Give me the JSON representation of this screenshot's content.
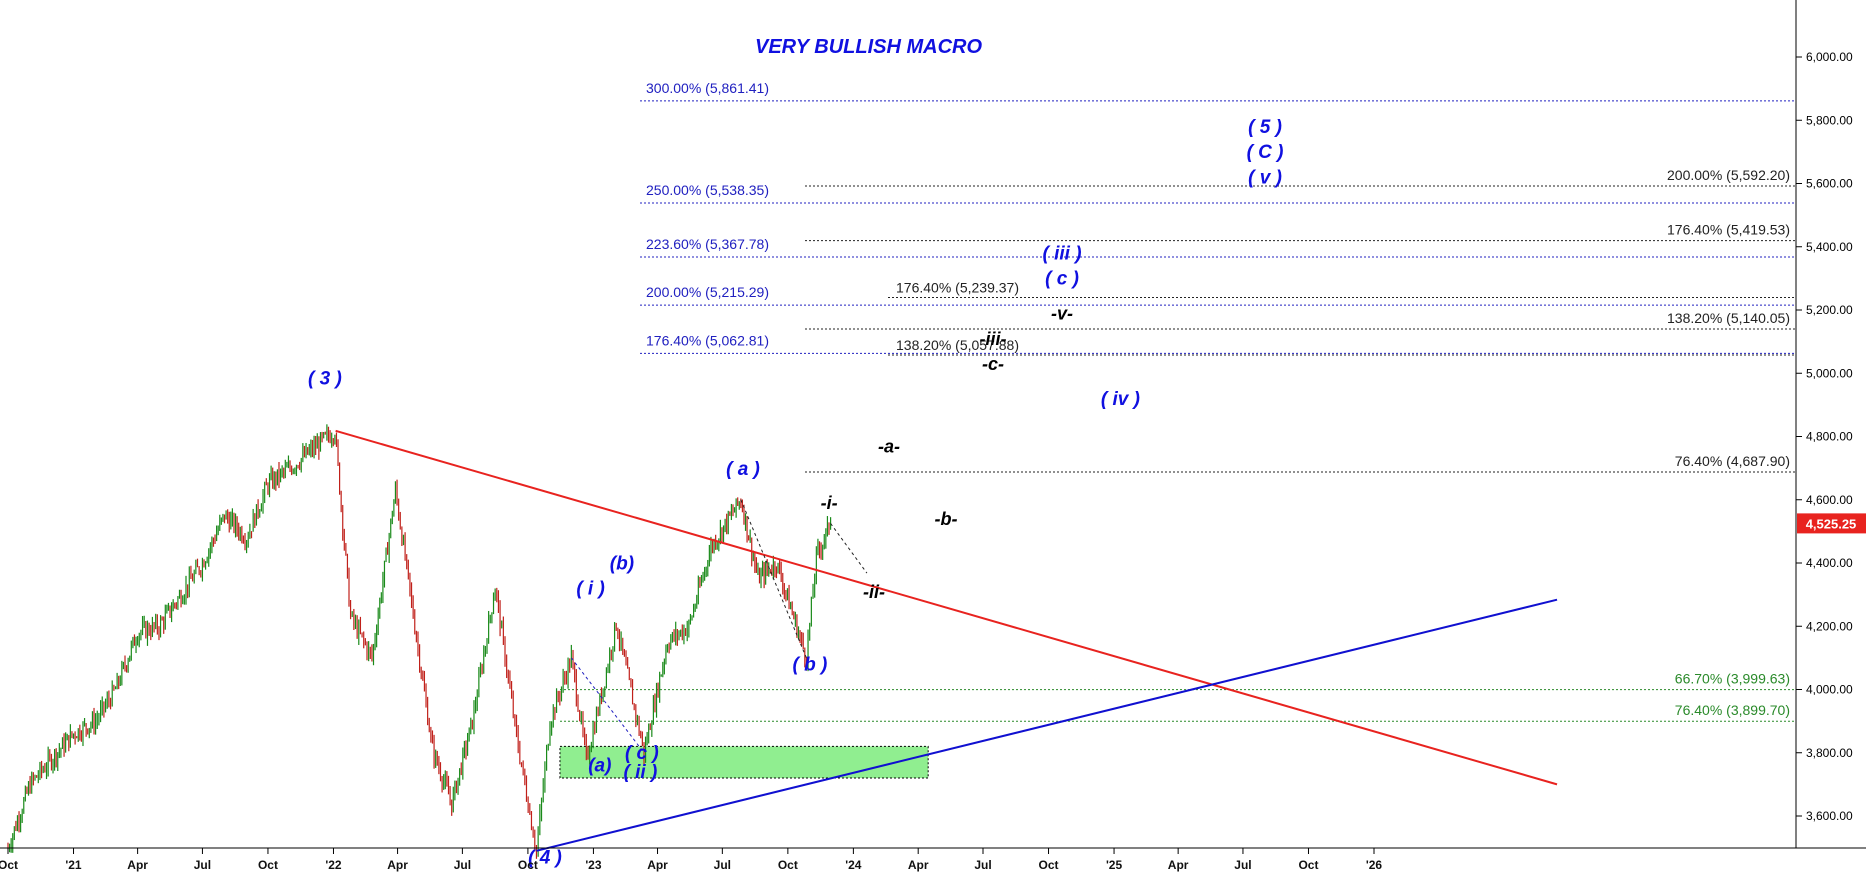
{
  "chart_data": {
    "type": "line",
    "title": "VERY BULLISH MACRO",
    "ylim": [
      3480,
      6200
    ],
    "x_ticks": [
      "Oct",
      "'21",
      "Apr",
      "Jul",
      "Oct",
      "'22",
      "Apr",
      "Jul",
      "Oct",
      "'23",
      "Apr",
      "Jul",
      "Oct",
      "'24",
      "Apr",
      "Jul",
      "Oct",
      "'25",
      "Apr",
      "Jul",
      "Oct",
      "'26"
    ],
    "y_ticks": [
      "3,600.00",
      "3,800.00",
      "4,000.00",
      "4,200.00",
      "4,400.00",
      "4,600.00",
      "4,800.00",
      "5,000.00",
      "5,200.00",
      "5,400.00",
      "5,600.00",
      "5,800.00",
      "6,000.00"
    ],
    "y_tick_values": [
      3600,
      3800,
      4000,
      4200,
      4400,
      4600,
      4800,
      5000,
      5200,
      5400,
      5600,
      5800,
      6000
    ],
    "last_price": {
      "value": 4525.25,
      "label": "4,525.25",
      "color": "#e8231f"
    },
    "price_series": {
      "name": "",
      "color_up": "#1a8a1a",
      "color_down": "#c0201a",
      "x": [
        "2020-10-01",
        "2020-11-01",
        "2020-12-01",
        "2021-01-01",
        "2021-02-01",
        "2021-03-01",
        "2021-04-01",
        "2021-05-01",
        "2021-06-01",
        "2021-07-01",
        "2021-08-01",
        "2021-09-01",
        "2021-10-01",
        "2021-11-01",
        "2022-01-03",
        "2022-01-25",
        "2022-02-24",
        "2022-03-29",
        "2022-05-20",
        "2022-06-16",
        "2022-07-15",
        "2022-08-16",
        "2022-09-15",
        "2022-10-13",
        "2022-11-01",
        "2022-12-01",
        "2022-12-22",
        "2023-01-10",
        "2023-02-02",
        "2023-03-13",
        "2023-04-15",
        "2023-05-15",
        "2023-06-15",
        "2023-07-27",
        "2023-08-20",
        "2023-09-15",
        "2023-10-27",
        "2023-11-10",
        "2023-11-30"
      ],
      "y": [
        3500,
        3700,
        3780,
        3860,
        3900,
        4000,
        4180,
        4200,
        4300,
        4400,
        4550,
        4480,
        4650,
        4700,
        4818,
        4230,
        4100,
        4630,
        3810,
        3640,
        3900,
        4325,
        3850,
        3490,
        3900,
        4100,
        3780,
        3960,
        4208,
        3800,
        4150,
        4200,
        4450,
        4600,
        4350,
        4400,
        4100,
        4420,
        4525
      ]
    },
    "trendlines": [
      {
        "color": "#e8231f",
        "from": {
          "x": "2022-01-04",
          "y": 4818
        },
        "to": {
          "x": "2026-09-15",
          "y": 3700
        }
      },
      {
        "color": "#1010d0",
        "from": {
          "x": "2022-10-13",
          "y": 3490
        },
        "to": {
          "x": "2026-09-15",
          "y": 4284
        }
      },
      {
        "color": "#2020c0",
        "dashed": true,
        "from": {
          "x": "2022-12-01",
          "y": 4100
        },
        "to": {
          "x": "2023-03-13",
          "y": 3800
        }
      },
      {
        "color": "#222222",
        "dashed": true,
        "from": {
          "x": "2023-07-27",
          "y": 4600
        },
        "to": {
          "x": "2023-10-27",
          "y": 4100
        }
      },
      {
        "color": "#222222",
        "dashed": true,
        "from": {
          "x": "2023-11-30",
          "y": 4525
        },
        "to": {
          "x": "2024-01-20",
          "y": 4368
        }
      }
    ],
    "zone": {
      "color": "#90ee90",
      "x_start": "2022-11-15",
      "x_end": "2024-04-15",
      "y_low": 3720,
      "y_high": 3820
    },
    "fib_levels_left": [
      {
        "label": "300.00% (5,861.41)",
        "y": 5861.41,
        "color": "#2020c0"
      },
      {
        "label": "250.00% (5,538.35)",
        "y": 5538.35,
        "color": "#2020c0"
      },
      {
        "label": "223.60% (5,367.78)",
        "y": 5367.78,
        "color": "#2020c0"
      },
      {
        "label": "200.00% (5,215.29)",
        "y": 5215.29,
        "color": "#2020c0"
      },
      {
        "label": "176.40% (5,062.81)",
        "y": 5062.81,
        "color": "#2020c0"
      }
    ],
    "fib_levels_mid": [
      {
        "label": "176.40% (5,239.37)",
        "y": 5239.37,
        "color": "#222222"
      },
      {
        "label": "138.20% (5,057.88)",
        "y": 5057.88,
        "color": "#222222"
      }
    ],
    "fib_levels_right": [
      {
        "label": "200.00% (5,592.20)",
        "y": 5592.2,
        "color": "#222222"
      },
      {
        "label": "176.40% (5,419.53)",
        "y": 5419.53,
        "color": "#222222"
      },
      {
        "label": "138.20% (5,140.05)",
        "y": 5140.05,
        "color": "#222222"
      },
      {
        "label": "76.40% (4,687.90)",
        "y": 4687.9,
        "color": "#222222"
      },
      {
        "label": "66.70% (3,999.63)",
        "y": 3999.63,
        "color": "#2a8a2a"
      },
      {
        "label": "76.40% (3,899.70)",
        "y": 3899.7,
        "color": "#2a8a2a"
      }
    ],
    "wave_labels": [
      {
        "text": "( 3 )",
        "x": "2021-12-20",
        "y": 4965,
        "color": "blue"
      },
      {
        "text": "( 4 )",
        "x": "2022-10-25",
        "y": 3450,
        "color": "blue"
      },
      {
        "text": "( i )",
        "x": "2022-12-28",
        "y": 4300,
        "color": "blue"
      },
      {
        "text": "(b)",
        "x": "2023-02-10",
        "y": 4380,
        "color": "blue"
      },
      {
        "text": "(a)",
        "x": "2023-01-10",
        "y": 3740,
        "color": "blue"
      },
      {
        "text": "( c )",
        "x": "2023-03-10",
        "y": 3780,
        "color": "blue"
      },
      {
        "text": "( ii )",
        "x": "2023-03-08",
        "y": 3720,
        "color": "blue"
      },
      {
        "text": "( a )",
        "x": "2023-07-30",
        "y": 4678,
        "color": "blue"
      },
      {
        "text": "( b )",
        "x": "2023-11-01",
        "y": 4060,
        "color": "blue"
      },
      {
        "text": "-i-",
        "x": "2023-11-28",
        "y": 4570,
        "color": "black"
      },
      {
        "text": "-ii-",
        "x": "2024-01-30",
        "y": 4290,
        "color": "black"
      },
      {
        "text": "-a-",
        "x": "2024-02-20",
        "y": 4750,
        "color": "black"
      },
      {
        "text": "-b-",
        "x": "2024-05-10",
        "y": 4520,
        "color": "black"
      },
      {
        "text": "-c-",
        "x": "2024-07-15",
        "y": 5010,
        "color": "black"
      },
      {
        "text": "-iii-",
        "x": "2024-07-15",
        "y": 5090,
        "color": "black"
      },
      {
        "text": "-v-",
        "x": "2024-10-20",
        "y": 5170,
        "color": "black"
      },
      {
        "text": "( c )",
        "x": "2024-10-20",
        "y": 5280,
        "color": "blue"
      },
      {
        "text": "( iii )",
        "x": "2024-10-20",
        "y": 5360,
        "color": "blue"
      },
      {
        "text": "( iv )",
        "x": "2025-01-10",
        "y": 4900,
        "color": "blue"
      },
      {
        "text": "( v )",
        "x": "2025-08-01",
        "y": 5600,
        "color": "blue"
      },
      {
        "text": "( C )",
        "x": "2025-08-01",
        "y": 5680,
        "color": "blue"
      },
      {
        "text": "( 5 )",
        "x": "2025-08-01",
        "y": 5760,
        "color": "blue"
      }
    ]
  }
}
